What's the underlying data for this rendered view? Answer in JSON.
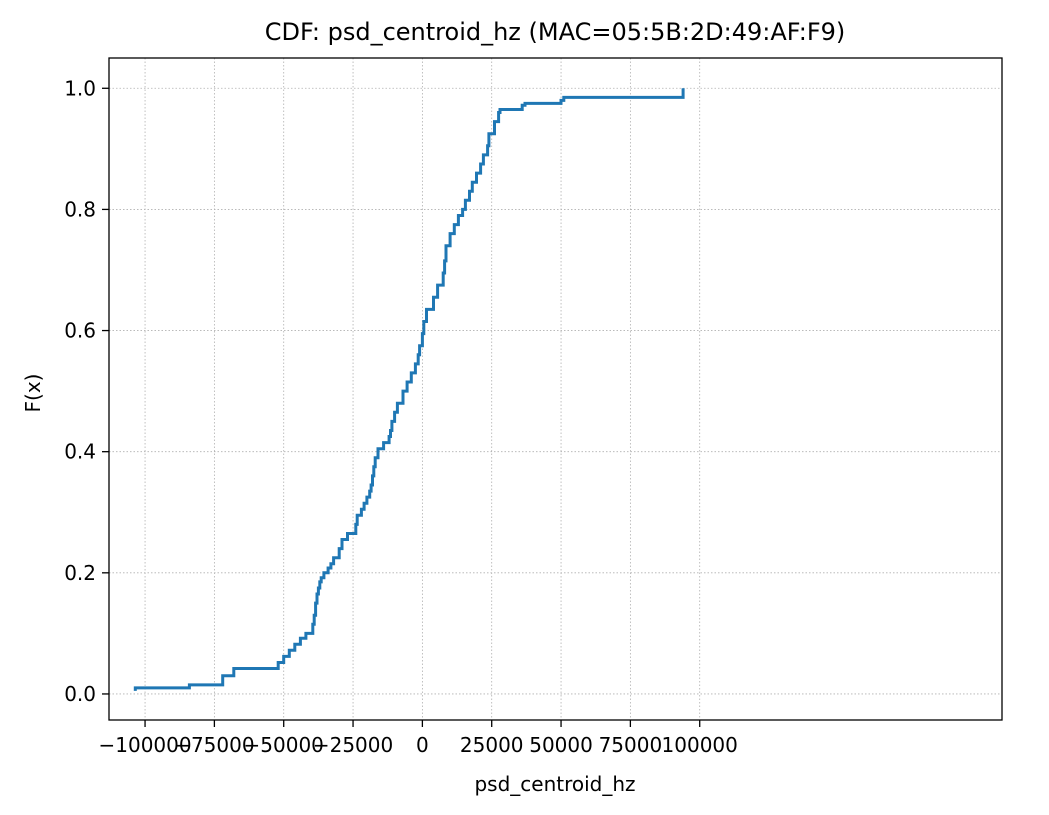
{
  "chart_data": {
    "type": "line",
    "drawstyle": "steps",
    "title": "CDF: psd_centroid_hz (MAC=05:5B:2D:49:AF:F9)",
    "xlabel": "psd_centroid_hz",
    "ylabel": "F(x)",
    "xlim": [
      -113000,
      209000
    ],
    "ylim": [
      -0.043,
      1.05
    ],
    "xticks": [
      -100000,
      -75000,
      -50000,
      -25000,
      0,
      25000,
      50000,
      75000,
      100000
    ],
    "xtick_labels": [
      "−100000",
      "−75000",
      "−50000",
      "−25000",
      "0",
      "25000",
      "50000",
      "75000",
      "100000"
    ],
    "yticks": [
      0.0,
      0.2,
      0.4,
      0.6,
      0.8,
      1.0
    ],
    "ytick_labels": [
      "0.0",
      "0.2",
      "0.4",
      "0.6",
      "0.8",
      "1.0"
    ],
    "grid": true,
    "line_color": "#1f77b4",
    "series": [
      {
        "x": [
          -103500,
          -103500,
          -84000,
          -72000,
          -68000,
          -52000,
          -50000,
          -48000,
          -46000,
          -44000,
          -42000,
          -39500,
          -39000,
          -38500,
          -38000,
          -37500,
          -37000,
          -36500,
          -35500,
          -34000,
          -33000,
          -32000,
          -30000,
          -29000,
          -27000,
          -24000,
          -23500,
          -22000,
          -21000,
          -20000,
          -19000,
          -18500,
          -18000,
          -17500,
          -17000,
          -16000,
          -14000,
          -12000,
          -11500,
          -11000,
          -10000,
          -9000,
          -7000,
          -5500,
          -4000,
          -2500,
          -1500,
          -1000,
          0,
          500,
          1500,
          4000,
          5500,
          7500,
          8000,
          8500,
          10000,
          11500,
          13000,
          14500,
          15500,
          17000,
          18000,
          19500,
          21000,
          22000,
          23500,
          24000,
          26000,
          27500,
          28000,
          36000,
          37000,
          50000,
          51000,
          94000,
          94000
        ],
        "y": [
          0.005,
          0.01,
          0.015,
          0.03,
          0.042,
          0.052,
          0.062,
          0.072,
          0.082,
          0.092,
          0.1,
          0.115,
          0.13,
          0.15,
          0.165,
          0.175,
          0.185,
          0.192,
          0.2,
          0.208,
          0.215,
          0.225,
          0.24,
          0.255,
          0.265,
          0.28,
          0.295,
          0.305,
          0.315,
          0.325,
          0.335,
          0.345,
          0.36,
          0.375,
          0.39,
          0.405,
          0.415,
          0.425,
          0.435,
          0.45,
          0.465,
          0.48,
          0.5,
          0.515,
          0.53,
          0.545,
          0.56,
          0.575,
          0.595,
          0.615,
          0.635,
          0.655,
          0.675,
          0.695,
          0.715,
          0.74,
          0.76,
          0.775,
          0.79,
          0.8,
          0.815,
          0.83,
          0.845,
          0.86,
          0.875,
          0.89,
          0.905,
          0.925,
          0.945,
          0.96,
          0.965,
          0.972,
          0.975,
          0.98,
          0.985,
          0.985,
          1.0
        ]
      }
    ]
  }
}
